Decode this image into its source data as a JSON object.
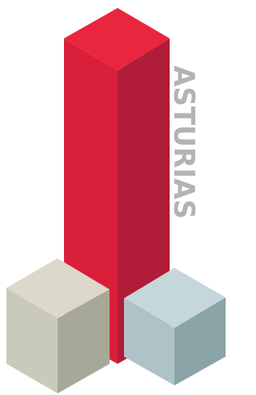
{
  "logo": {
    "text": "ASTURIAS"
  }
}
